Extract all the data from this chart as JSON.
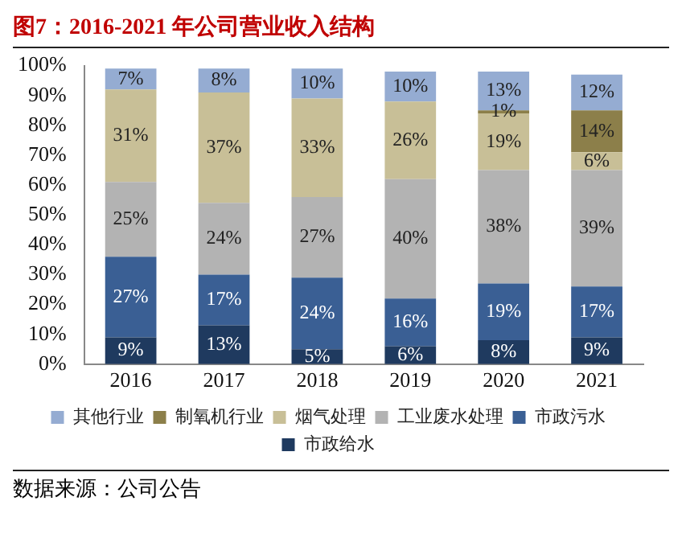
{
  "chart_data": {
    "type": "bar",
    "title": "图7：2016-2021 年公司营业收入结构",
    "stacked": true,
    "legend": "bottom",
    "grid": false,
    "categories": [
      "2016",
      "2017",
      "2018",
      "2019",
      "2020",
      "2021"
    ],
    "series": [
      {
        "name": "市政给水",
        "color": "#1f3a5f",
        "values": [
          9,
          13,
          5,
          6,
          8,
          9
        ],
        "value_labels": [
          "9%",
          "13%",
          "5%",
          "6%",
          "8%",
          "9%"
        ]
      },
      {
        "name": "市政污水",
        "color": "#3a5f94",
        "values": [
          27,
          17,
          24,
          16,
          19,
          17
        ],
        "value_labels": [
          "27%",
          "17%",
          "24%",
          "16%",
          "19%",
          "17%"
        ]
      },
      {
        "name": "工业废水处理",
        "color": "#b3b3b3",
        "values": [
          25,
          24,
          27,
          40,
          38,
          39
        ],
        "value_labels": [
          "25%",
          "24%",
          "27%",
          "40%",
          "38%",
          "39%"
        ]
      },
      {
        "name": "烟气处理",
        "color": "#c8bf97",
        "values": [
          31,
          37,
          33,
          26,
          19,
          6
        ],
        "value_labels": [
          "31%",
          "37%",
          "33%",
          "26%",
          "19%",
          "6%"
        ]
      },
      {
        "name": "制氧机行业",
        "color": "#8c7f4a",
        "values": [
          null,
          null,
          null,
          null,
          1,
          14
        ],
        "value_labels": [
          null,
          null,
          null,
          null,
          "1%",
          "14%"
        ]
      },
      {
        "name": "其他行业",
        "color": "#95acd2",
        "values": [
          7,
          8,
          10,
          10,
          13,
          12
        ],
        "value_labels": [
          "7%",
          "8%",
          "10%",
          "10%",
          "13%",
          "12%"
        ]
      }
    ],
    "ylim": [
      0,
      100
    ],
    "yticks": [
      {
        "value": 0,
        "label": "0%"
      },
      {
        "value": 10,
        "label": "10%"
      },
      {
        "value": 20,
        "label": "20%"
      },
      {
        "value": 30,
        "label": "30%"
      },
      {
        "value": 40,
        "label": "40%"
      },
      {
        "value": 50,
        "label": "50%"
      },
      {
        "value": 60,
        "label": "60%"
      },
      {
        "value": 70,
        "label": "70%"
      },
      {
        "value": 80,
        "label": "80%"
      },
      {
        "value": 90,
        "label": "90%"
      },
      {
        "value": 100,
        "label": "100%"
      }
    ],
    "annotations": [
      "数据来源：公司公告"
    ]
  }
}
